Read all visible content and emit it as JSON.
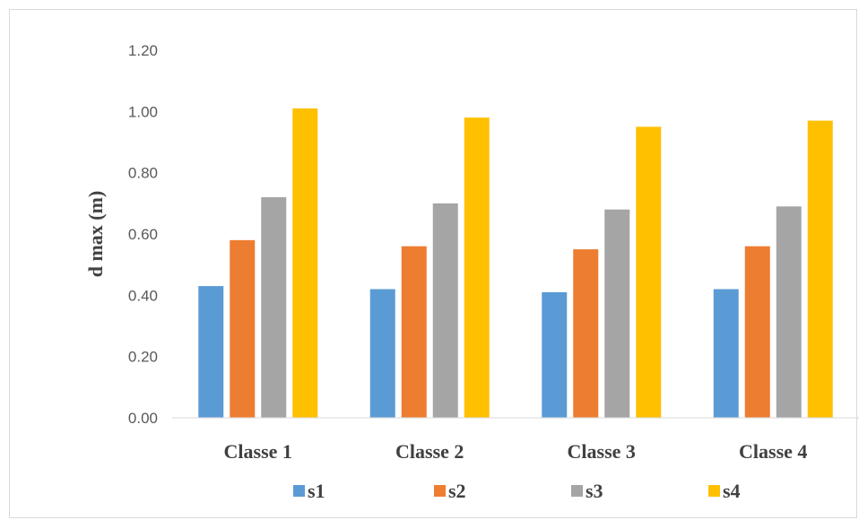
{
  "chart_data": {
    "type": "bar",
    "ylabel": "d max  (m)",
    "xlabel": "",
    "ylim": [
      0,
      1.2
    ],
    "yticks": [
      "0.00",
      "0.20",
      "0.40",
      "0.60",
      "0.80",
      "1.00",
      "1.20"
    ],
    "grid": false,
    "legend_position": "bottom",
    "categories": [
      "Classe 1",
      "Classe 2",
      "Classe 3",
      "Classe 4"
    ],
    "series": [
      {
        "name": "s1",
        "color": "#5b9bd5",
        "values": [
          0.43,
          0.42,
          0.41,
          0.42
        ]
      },
      {
        "name": "s2",
        "color": "#ed7d31",
        "values": [
          0.58,
          0.56,
          0.55,
          0.56
        ]
      },
      {
        "name": "s3",
        "color": "#a5a5a5",
        "values": [
          0.72,
          0.7,
          0.68,
          0.69
        ]
      },
      {
        "name": "s4",
        "color": "#ffc000",
        "values": [
          1.01,
          0.98,
          0.95,
          0.97
        ]
      }
    ]
  }
}
